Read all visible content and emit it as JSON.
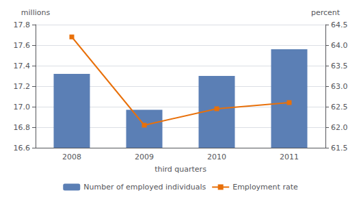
{
  "chart_data": {
    "type": "bar",
    "categories": [
      "2008",
      "2009",
      "2010",
      "2011"
    ],
    "xlabel": "third quarters",
    "ylabel": "millions",
    "y2label": "percent",
    "series": [
      {
        "name": "Number of employed individuals",
        "type": "bar",
        "color": "#5B7FB5",
        "values": [
          17.32,
          16.97,
          17.3,
          17.56
        ]
      },
      {
        "name": "Employment rate",
        "type": "line",
        "color": "#E8700A",
        "marker": "square",
        "axis": "y2",
        "values": [
          64.2,
          62.05,
          62.45,
          62.6
        ]
      }
    ],
    "ylim": [
      16.6,
      17.8
    ],
    "yticks": [
      16.6,
      16.8,
      {
        "value": 17,
        "label": "17.0"
      },
      17.2,
      17.4,
      17.6,
      17.8
    ],
    "y2lim": [
      61.5,
      64.5
    ],
    "y2ticks": [
      61.5,
      {
        "value": 62,
        "label": "62.0"
      },
      62.5,
      {
        "value": 63,
        "label": "63.0"
      },
      63.5,
      {
        "value": 64,
        "label": "64.0"
      },
      64.5
    ],
    "grid": true,
    "legend": "bottom"
  }
}
